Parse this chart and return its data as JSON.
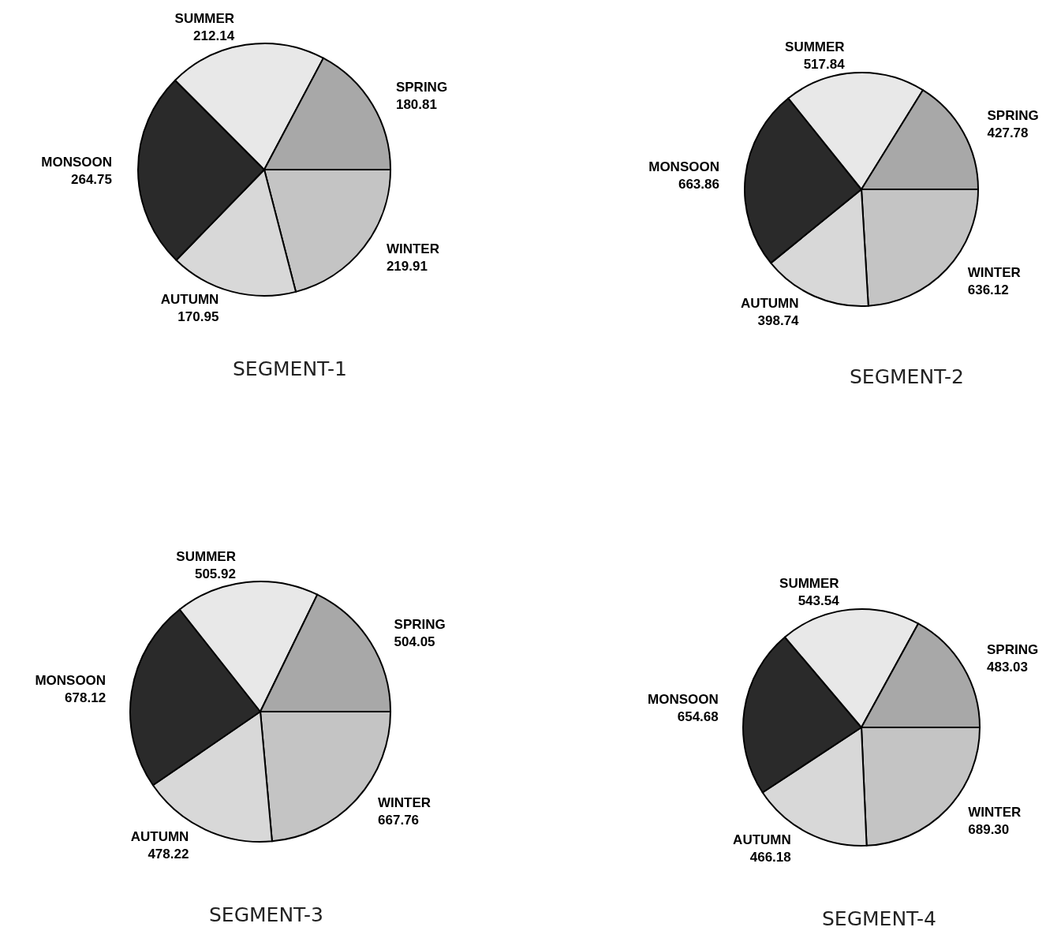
{
  "chart_data": [
    {
      "type": "pie",
      "title": "SEGMENT-1",
      "categories": [
        "WINTER",
        "AUTUMN",
        "MONSOON",
        "SUMMER",
        "SPRING"
      ],
      "values": [
        219.91,
        170.95,
        264.75,
        212.14,
        180.81
      ],
      "colors": [
        "#c4c4c4",
        "#d8d8d8",
        "#2a2a2a",
        "#e8e8e8",
        "#a8a8a8"
      ],
      "data_labels": true
    },
    {
      "type": "pie",
      "title": "SEGMENT-2",
      "categories": [
        "WINTER",
        "AUTUMN",
        "MONSOON",
        "SUMMER",
        "SPRING"
      ],
      "values": [
        636.12,
        398.74,
        663.86,
        517.84,
        427.78
      ],
      "colors": [
        "#c4c4c4",
        "#d8d8d8",
        "#2a2a2a",
        "#e8e8e8",
        "#a8a8a8"
      ],
      "data_labels": true
    },
    {
      "type": "pie",
      "title": "SEGMENT-3",
      "categories": [
        "WINTER",
        "AUTUMN",
        "MONSOON",
        "SUMMER",
        "SPRING"
      ],
      "values": [
        667.76,
        478.22,
        678.12,
        505.92,
        504.05
      ],
      "colors": [
        "#c4c4c4",
        "#d8d8d8",
        "#2a2a2a",
        "#e8e8e8",
        "#a8a8a8"
      ],
      "data_labels": true
    },
    {
      "type": "pie",
      "title": "SEGMENT-4",
      "categories": [
        "WINTER",
        "AUTUMN",
        "MONSOON",
        "SUMMER",
        "SPRING"
      ],
      "values": [
        689.3,
        466.18,
        654.68,
        543.54,
        483.03
      ],
      "colors": [
        "#c4c4c4",
        "#d8d8d8",
        "#2a2a2a",
        "#e8e8e8",
        "#a8a8a8"
      ],
      "value_labels": [
        "689.30",
        "466.18",
        "654.68",
        "543.54",
        "483.03"
      ]
    }
  ]
}
